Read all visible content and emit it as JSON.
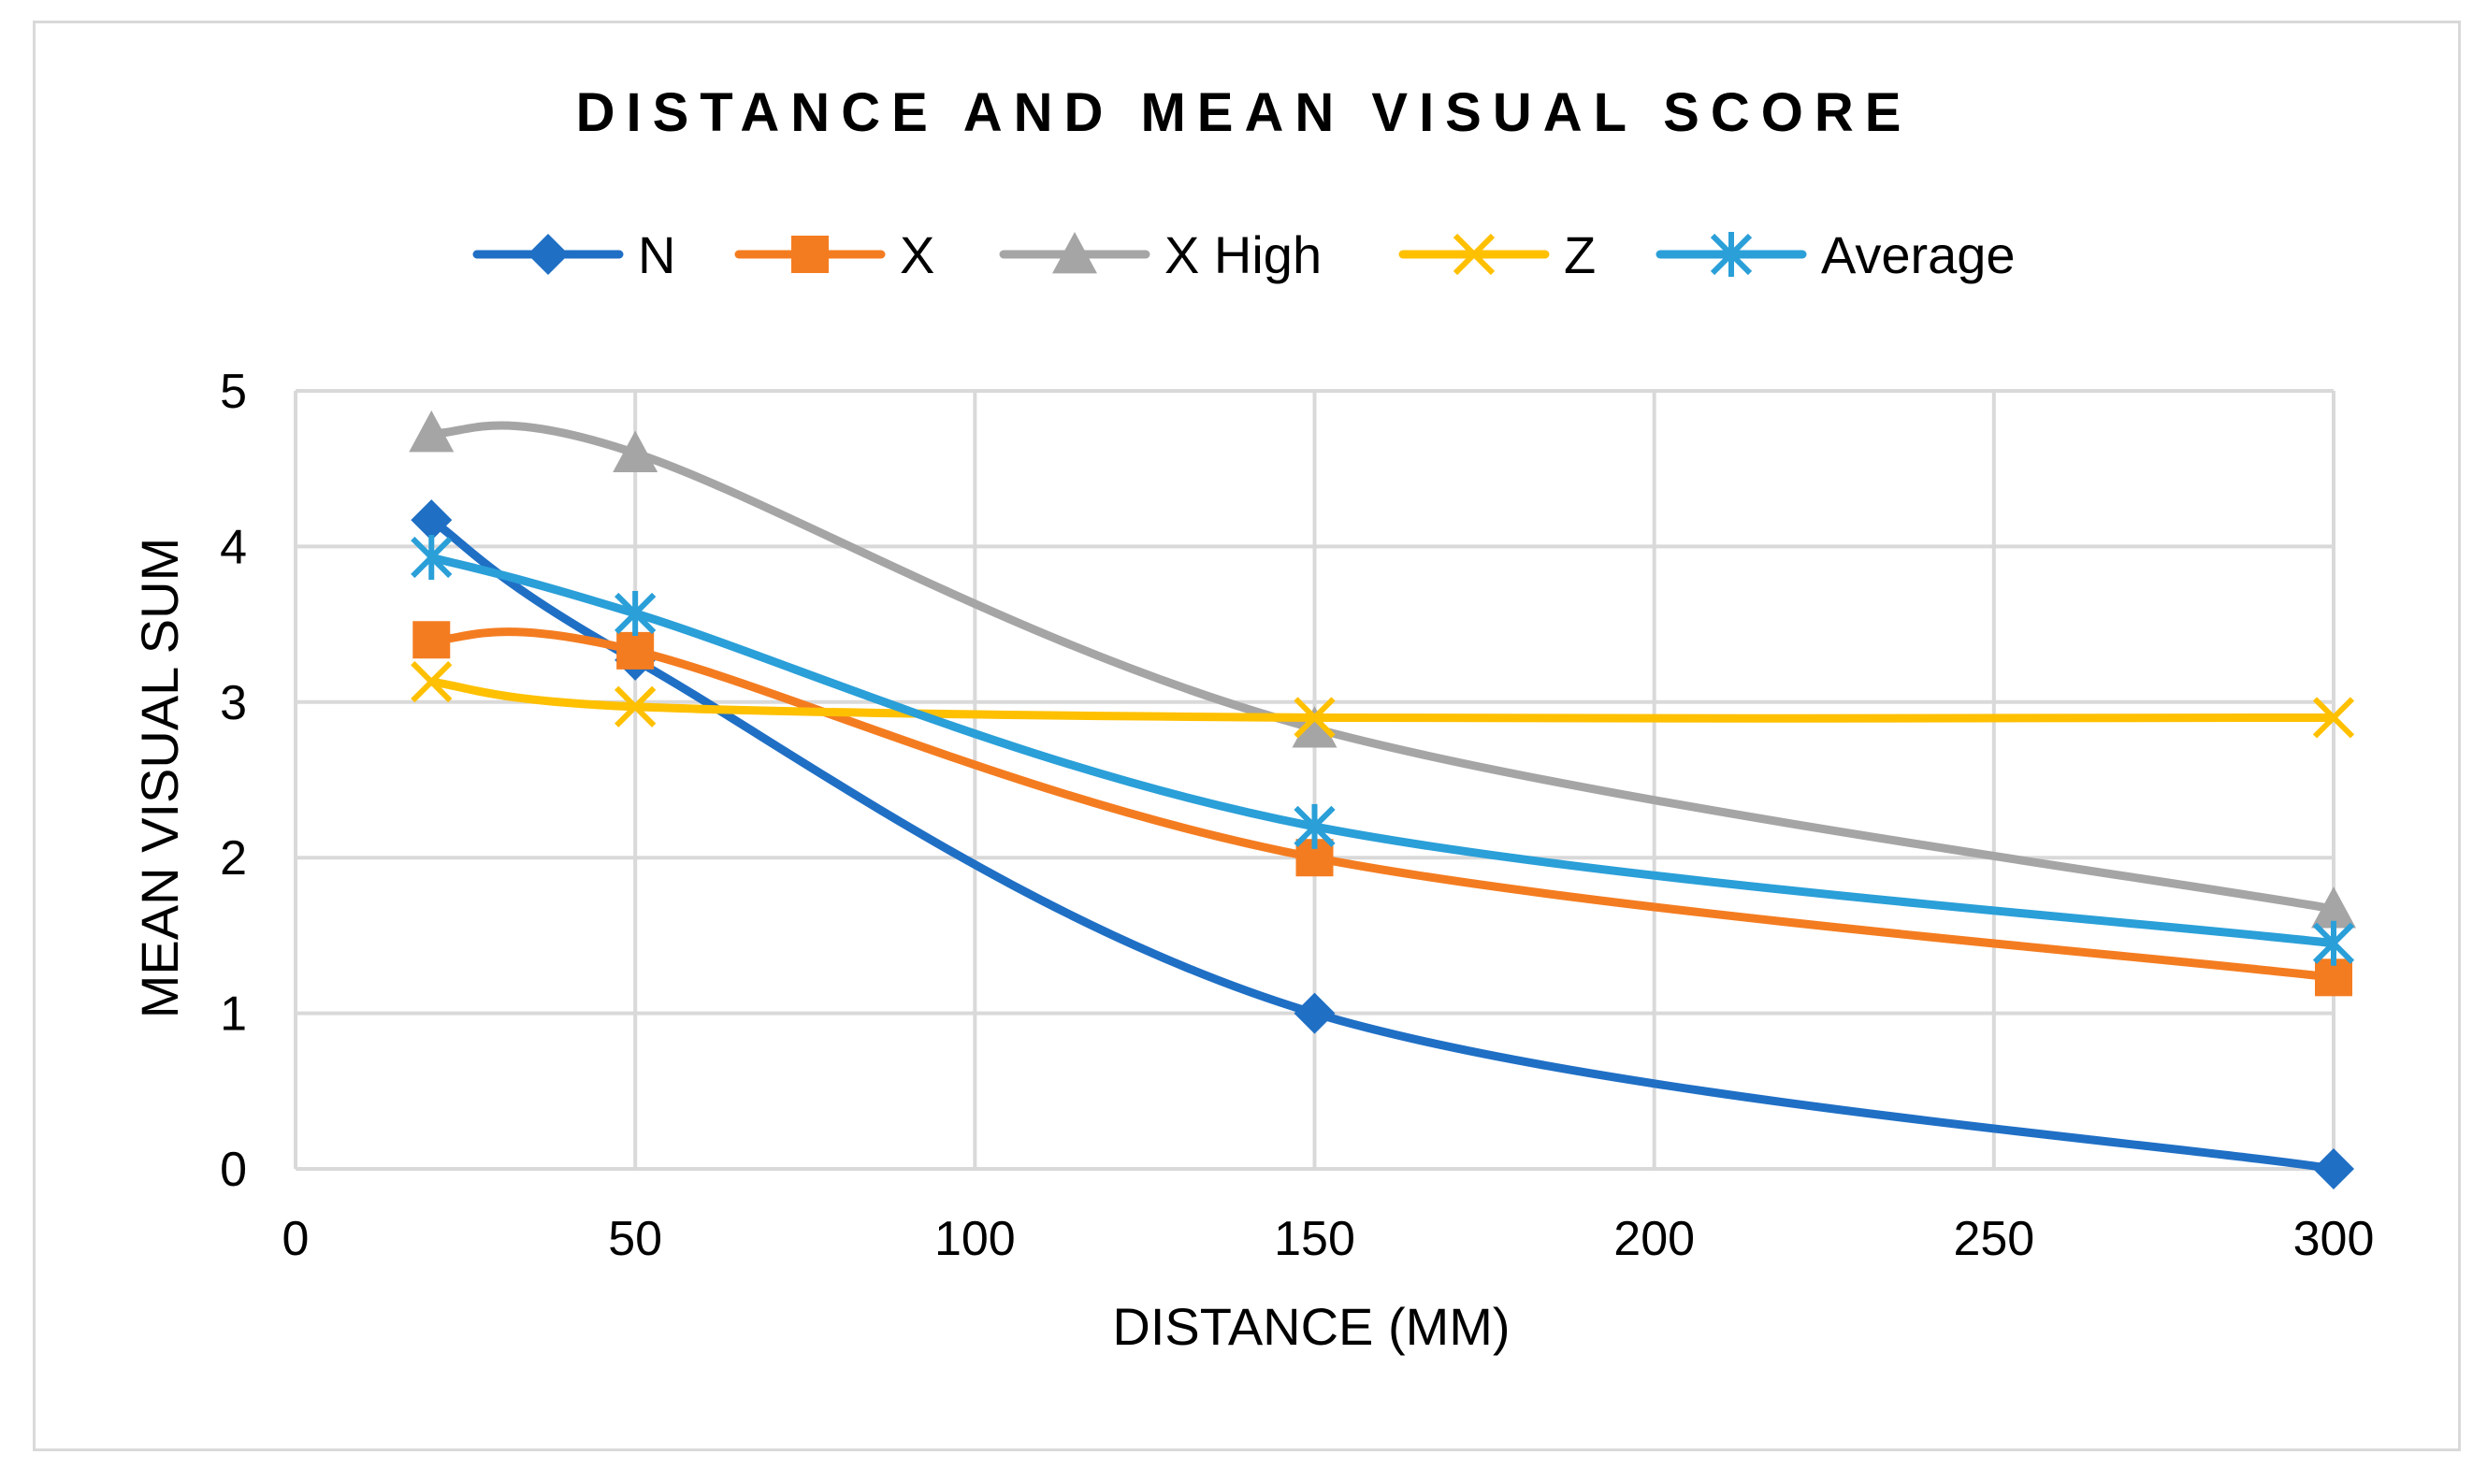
{
  "chart_data": {
    "type": "line",
    "title": "DISTANCE AND MEAN VISUAL SCORE",
    "xlabel": "DISTANCE (MM)",
    "ylabel": "MEAN VISUAL SUM",
    "xlim": [
      0,
      300
    ],
    "ylim": [
      0,
      5
    ],
    "x_ticks": [
      0,
      50,
      100,
      150,
      200,
      250,
      300
    ],
    "y_ticks": [
      0,
      1,
      2,
      3,
      4,
      5
    ],
    "grid": true,
    "legend_position": "top",
    "smooth": true,
    "x": [
      20,
      50,
      150,
      300
    ],
    "series": [
      {
        "name": "N",
        "values": [
          4.17,
          3.27,
          1.0,
          0.0
        ],
        "color": "#1f6fc5",
        "marker": "diamond"
      },
      {
        "name": "X",
        "values": [
          3.4,
          3.33,
          2.0,
          1.23
        ],
        "color": "#f47c20",
        "marker": "square"
      },
      {
        "name": "X High",
        "values": [
          4.73,
          4.6,
          2.83,
          1.67
        ],
        "color": "#a5a5a5",
        "marker": "triangle"
      },
      {
        "name": "Z",
        "values": [
          3.13,
          2.97,
          2.9,
          2.9
        ],
        "color": "#ffc000",
        "marker": "x"
      },
      {
        "name": "Average",
        "values": [
          3.93,
          3.57,
          2.2,
          1.45
        ],
        "color": "#2a9fd8",
        "marker": "asterisk"
      }
    ]
  }
}
